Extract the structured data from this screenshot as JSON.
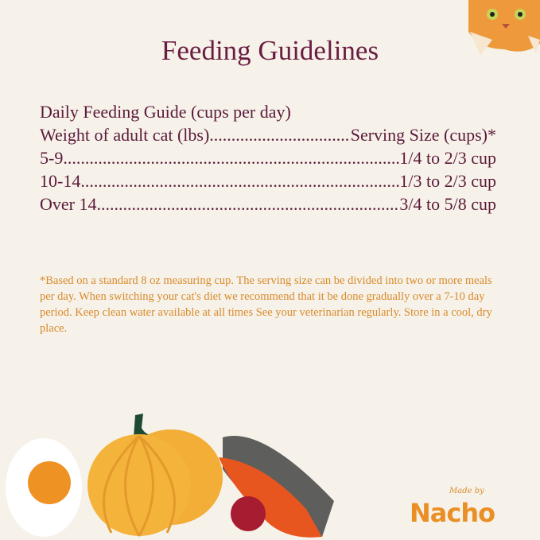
{
  "title": "Feeding Guidelines",
  "guide": {
    "heading": "Daily Feeding Guide (cups per day)",
    "header_left": "Weight of adult cat (lbs)",
    "header_right": "Serving Size (cups)*",
    "rows": [
      {
        "weight": "5-9",
        "serving": "1/4 to 2/3 cup"
      },
      {
        "weight": "10-14",
        "serving": "1/3 to 2/3 cup"
      },
      {
        "weight": "Over 14",
        "serving": "3/4 to 5/8 cup"
      }
    ]
  },
  "footnote": "*Based on a standard 8 oz measuring cup. The serving size can be divided into two or more meals per day. When switching your cat's diet we recommend that it be done gradually over a 7-10 day period. Keep clean water available at all times See your veterinarian regularly. Store in a cool, dry place.",
  "brand": {
    "made_by": "Made by",
    "name": "Nacho"
  },
  "colors": {
    "background": "#f6f2e9",
    "title": "#6a1d42",
    "footnote": "#d98a2b",
    "brand": "#ea8f26"
  }
}
